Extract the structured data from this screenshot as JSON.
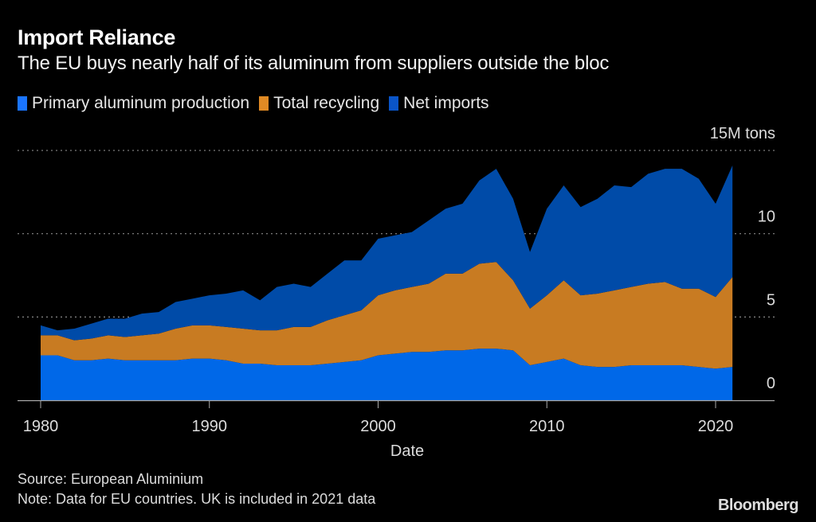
{
  "chart_data": {
    "type": "area",
    "stacked": true,
    "title": "Import Reliance",
    "subtitle": "The EU buys nearly half of its aluminum from suppliers outside the bloc",
    "xlabel": "Date",
    "ylabel": "",
    "y_unit_label": "15M tons",
    "ylim": [
      0,
      15
    ],
    "yticks": [
      "0",
      "5",
      "10",
      "15M tons"
    ],
    "ytick_values": [
      0,
      5,
      10,
      15
    ],
    "xticks": [
      "1980",
      "1990",
      "2000",
      "2010",
      "2020"
    ],
    "xtick_values": [
      1980,
      1990,
      2000,
      2010,
      2020
    ],
    "grid": "horizontal dotted",
    "legend_position": "top-left",
    "x": [
      1980,
      1981,
      1982,
      1983,
      1984,
      1985,
      1986,
      1987,
      1988,
      1989,
      1990,
      1991,
      1992,
      1993,
      1994,
      1995,
      1996,
      1997,
      1998,
      1999,
      2000,
      2001,
      2002,
      2003,
      2004,
      2005,
      2006,
      2007,
      2008,
      2009,
      2010,
      2011,
      2012,
      2013,
      2014,
      2015,
      2016,
      2017,
      2018,
      2019,
      2020,
      2021
    ],
    "series": [
      {
        "name": "Primary aluminum production",
        "color": "#0068e8",
        "values": [
          2.7,
          2.7,
          2.4,
          2.4,
          2.5,
          2.4,
          2.4,
          2.4,
          2.4,
          2.5,
          2.5,
          2.4,
          2.2,
          2.2,
          2.1,
          2.1,
          2.1,
          2.2,
          2.3,
          2.4,
          2.7,
          2.8,
          2.9,
          2.9,
          3.0,
          3.0,
          3.1,
          3.1,
          3.0,
          2.1,
          2.3,
          2.5,
          2.1,
          2.0,
          2.0,
          2.1,
          2.1,
          2.1,
          2.1,
          2.0,
          1.9,
          2.0
        ]
      },
      {
        "name": "Total recycling",
        "color": "#c87b22",
        "values": [
          1.2,
          1.2,
          1.2,
          1.3,
          1.4,
          1.4,
          1.5,
          1.6,
          1.9,
          2.0,
          2.0,
          2.0,
          2.1,
          2.0,
          2.1,
          2.3,
          2.3,
          2.6,
          2.8,
          3.0,
          3.6,
          3.8,
          3.9,
          4.1,
          4.6,
          4.6,
          5.1,
          5.2,
          4.2,
          3.4,
          4.0,
          4.7,
          4.2,
          4.4,
          4.6,
          4.7,
          4.9,
          5.0,
          4.6,
          4.7,
          4.3,
          5.4
        ]
      },
      {
        "name": "Net imports",
        "color": "#004ba8",
        "values": [
          0.6,
          0.3,
          0.7,
          0.9,
          1.0,
          1.1,
          1.3,
          1.3,
          1.6,
          1.6,
          1.8,
          2.0,
          2.3,
          1.8,
          2.6,
          2.6,
          2.4,
          2.8,
          3.3,
          3.0,
          3.4,
          3.3,
          3.3,
          3.8,
          3.9,
          4.2,
          5.0,
          5.6,
          4.9,
          3.4,
          5.2,
          5.7,
          5.3,
          5.7,
          6.3,
          6.0,
          6.6,
          6.8,
          7.2,
          6.6,
          5.6,
          6.7
        ]
      }
    ],
    "legend_swatch_colors": [
      "#1a75ff",
      "#e08a24",
      "#0a55c8"
    ]
  },
  "footer": {
    "source": "Source: European Aluminium",
    "note": "Note: Data for EU countries. UK is included in 2021 data",
    "logo": "Bloomberg"
  }
}
